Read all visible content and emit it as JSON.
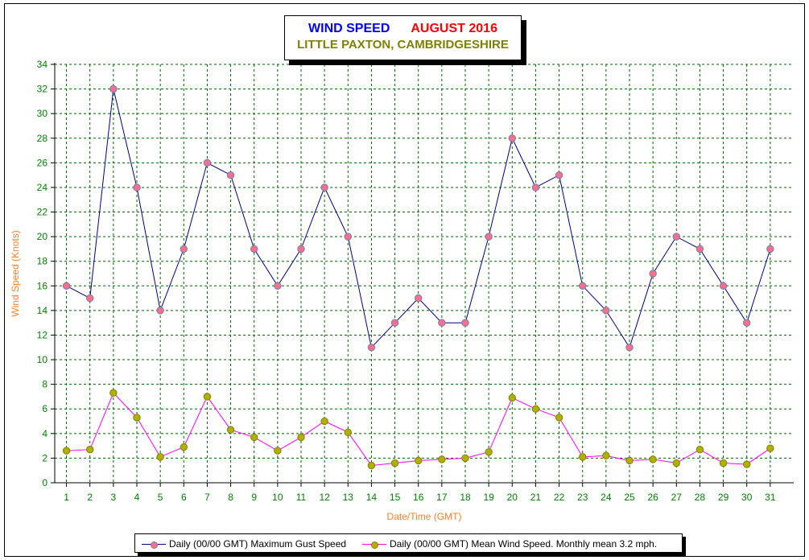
{
  "title": {
    "line1_left": "WIND SPEED",
    "line1_right": "AUGUST 2016",
    "line2": "LITTLE PAXTON, CAMBRIDGESHIRE"
  },
  "colors": {
    "title_left": "#0000ff",
    "title_right": "#ff0000",
    "title_line2": "#808000",
    "tick_labels": "#008000",
    "axis_titles": "#ff7f27",
    "grid": "#006400",
    "gust_line": "#000080",
    "gust_marker": "#ff6f88",
    "mean_line": "#ff00ff",
    "mean_marker": "#b0b000"
  },
  "chart_data": {
    "type": "line",
    "x": [
      1,
      2,
      3,
      4,
      5,
      6,
      7,
      8,
      9,
      10,
      11,
      12,
      13,
      14,
      15,
      16,
      17,
      18,
      19,
      20,
      21,
      22,
      23,
      24,
      25,
      26,
      27,
      28,
      29,
      30,
      31
    ],
    "xlabel": "Date/Time (GMT)",
    "ylabel": "Wind Speed (Knots)",
    "ylim": [
      0,
      34
    ],
    "yticks": [
      0,
      2,
      4,
      6,
      8,
      10,
      12,
      14,
      16,
      18,
      20,
      22,
      24,
      26,
      28,
      30,
      32,
      34
    ],
    "grid": true,
    "legend_placement": "bottom",
    "series": [
      {
        "name": "Daily (00/00 GMT) Maximum Gust Speed",
        "values": [
          16,
          15,
          32,
          24,
          14,
          19,
          26,
          25,
          19,
          16,
          19,
          24,
          20,
          11,
          13,
          15,
          13,
          13,
          20,
          28,
          24,
          25,
          16,
          14,
          11,
          17,
          20,
          19,
          16,
          13,
          19
        ]
      },
      {
        "name": "Daily (00/00 GMT) Mean Wind Speed. Monthly mean 3.2 mph.",
        "values": [
          2.6,
          2.7,
          7.3,
          5.3,
          2.1,
          2.9,
          7.0,
          4.3,
          3.7,
          2.6,
          3.7,
          5.0,
          4.1,
          1.4,
          1.6,
          1.8,
          1.9,
          2.0,
          2.5,
          6.9,
          6.0,
          5.3,
          2.1,
          2.2,
          1.8,
          1.9,
          1.6,
          2.7,
          1.6,
          1.5,
          2.8
        ]
      }
    ]
  }
}
